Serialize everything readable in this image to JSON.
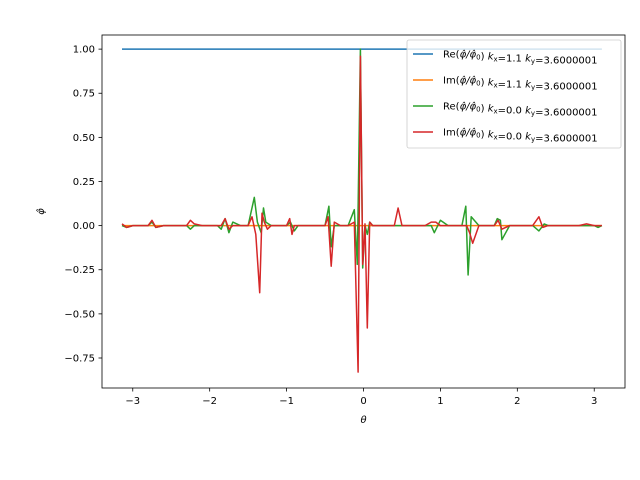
{
  "chart_data": {
    "type": "line",
    "xlabel": "θ",
    "ylabel": "φ̂",
    "xlim": [
      -3.4,
      3.4
    ],
    "ylim": [
      -0.92,
      1.08
    ],
    "xticks": [
      -3,
      -2,
      -1,
      0,
      1,
      2,
      3
    ],
    "xtick_labels": [
      "−3",
      "−2",
      "−1",
      "0",
      "1",
      "2",
      "3"
    ],
    "yticks": [
      -0.75,
      -0.5,
      -0.25,
      0.0,
      0.25,
      0.5,
      0.75,
      1.0
    ],
    "ytick_labels": [
      "−0.75",
      "−0.50",
      "−0.25",
      "0.00",
      "0.25",
      "0.50",
      "0.75",
      "1.00"
    ],
    "grid": false,
    "legend_position": "top-right",
    "series": [
      {
        "name": "Re(φ̂/φ̂₀) kx=1.1 ky=3.6000001",
        "legend": {
          "part": "Re",
          "kx": "1.1",
          "ky": "3.6000001"
        },
        "color": "#1f77b4",
        "x": [
          -3.14,
          3.1
        ],
        "y": [
          1.0,
          1.0
        ]
      },
      {
        "name": "Im(φ̂/φ̂₀) kx=1.1 ky=3.6000001",
        "legend": {
          "part": "Im",
          "kx": "1.1",
          "ky": "3.6000001"
        },
        "color": "#ff7f0e",
        "x": [
          -3.14,
          3.1
        ],
        "y": [
          0.0,
          0.0
        ]
      },
      {
        "name": "Re(φ̂/φ̂₀) kx=0.0 ky=3.6000001",
        "legend": {
          "part": "Re",
          "kx": "0.0",
          "ky": "3.6000001"
        },
        "color": "#2ca02c",
        "x": [
          -3.14,
          -3.08,
          -3.0,
          -2.9,
          -2.8,
          -2.75,
          -2.7,
          -2.6,
          -2.5,
          -2.4,
          -2.3,
          -2.25,
          -2.2,
          -2.1,
          -2.0,
          -1.9,
          -1.85,
          -1.8,
          -1.75,
          -1.7,
          -1.6,
          -1.5,
          -1.42,
          -1.38,
          -1.33,
          -1.3,
          -1.27,
          -1.2,
          -1.1,
          -1.0,
          -0.95,
          -0.9,
          -0.85,
          -0.8,
          -0.7,
          -0.6,
          -0.5,
          -0.45,
          -0.42,
          -0.38,
          -0.3,
          -0.2,
          -0.12,
          -0.08,
          -0.04,
          -0.01,
          0.02,
          0.05,
          0.08,
          0.12,
          0.2,
          0.3,
          0.4,
          0.5,
          0.6,
          0.7,
          0.8,
          0.88,
          0.92,
          1.0,
          1.1,
          1.2,
          1.28,
          1.33,
          1.36,
          1.4,
          1.5,
          1.6,
          1.7,
          1.74,
          1.78,
          1.8,
          1.9,
          2.0,
          2.1,
          2.2,
          2.28,
          2.35,
          2.4,
          2.5,
          2.6,
          2.7,
          2.8,
          2.9,
          3.0,
          3.05,
          3.1
        ],
        "y": [
          0.0,
          -0.01,
          0.0,
          0.0,
          0.0,
          0.02,
          -0.01,
          0.0,
          0.0,
          0.0,
          0.0,
          -0.02,
          0.0,
          0.0,
          0.0,
          0.0,
          -0.02,
          0.04,
          -0.04,
          0.02,
          0.0,
          0.0,
          0.16,
          0.02,
          -0.04,
          0.1,
          0.02,
          0.0,
          0.0,
          0.0,
          0.02,
          -0.03,
          0.0,
          0.0,
          0.0,
          0.0,
          0.0,
          0.11,
          -0.12,
          0.0,
          0.0,
          0.0,
          0.09,
          -0.22,
          1.0,
          -0.24,
          0.0,
          -0.05,
          0.02,
          0.0,
          0.0,
          0.0,
          0.0,
          0.0,
          0.0,
          0.0,
          0.0,
          0.0,
          -0.04,
          0.03,
          0.0,
          0.0,
          0.0,
          0.11,
          -0.28,
          0.05,
          0.0,
          0.0,
          0.0,
          0.04,
          0.03,
          -0.08,
          0.0,
          0.0,
          0.0,
          0.0,
          -0.03,
          0.01,
          0.0,
          0.0,
          0.0,
          0.0,
          0.0,
          0.0,
          0.0,
          -0.01,
          0.0
        ]
      },
      {
        "name": "Im(φ̂/φ̂₀) kx=0.0 ky=3.6000001",
        "legend": {
          "part": "Im",
          "kx": "0.0",
          "ky": "3.6000001"
        },
        "color": "#d62728",
        "x": [
          -3.14,
          -3.08,
          -3.0,
          -2.9,
          -2.8,
          -2.75,
          -2.7,
          -2.6,
          -2.5,
          -2.4,
          -2.3,
          -2.25,
          -2.2,
          -2.1,
          -2.0,
          -1.9,
          -1.85,
          -1.8,
          -1.75,
          -1.7,
          -1.6,
          -1.5,
          -1.45,
          -1.4,
          -1.35,
          -1.32,
          -1.29,
          -1.25,
          -1.2,
          -1.1,
          -1.0,
          -0.96,
          -0.93,
          -0.9,
          -0.85,
          -0.8,
          -0.7,
          -0.6,
          -0.5,
          -0.46,
          -0.42,
          -0.38,
          -0.3,
          -0.2,
          -0.12,
          -0.07,
          -0.04,
          -0.01,
          0.02,
          0.05,
          0.08,
          0.12,
          0.2,
          0.3,
          0.4,
          0.45,
          0.5,
          0.6,
          0.7,
          0.8,
          0.88,
          0.94,
          1.0,
          1.1,
          1.2,
          1.3,
          1.34,
          1.38,
          1.42,
          1.5,
          1.6,
          1.7,
          1.75,
          1.8,
          1.9,
          2.0,
          2.1,
          2.2,
          2.28,
          2.33,
          2.4,
          2.5,
          2.6,
          2.7,
          2.8,
          2.9,
          3.0,
          3.05,
          3.1
        ],
        "y": [
          0.01,
          -0.01,
          0.0,
          0.0,
          0.0,
          0.03,
          -0.01,
          0.0,
          0.0,
          0.0,
          0.0,
          0.03,
          0.01,
          0.0,
          0.0,
          0.0,
          0.0,
          0.04,
          -0.02,
          0.0,
          0.0,
          0.0,
          0.05,
          -0.05,
          -0.38,
          0.07,
          0.02,
          -0.02,
          0.0,
          0.0,
          0.0,
          0.04,
          -0.05,
          0.0,
          0.0,
          0.0,
          0.0,
          0.0,
          0.0,
          0.05,
          -0.23,
          0.02,
          0.0,
          0.0,
          0.02,
          -0.83,
          0.96,
          -0.22,
          0.01,
          -0.58,
          0.02,
          0.0,
          0.0,
          0.0,
          0.0,
          0.1,
          0.0,
          0.0,
          0.0,
          0.0,
          0.02,
          0.02,
          0.0,
          0.0,
          0.0,
          0.0,
          0.0,
          -0.04,
          -0.1,
          0.0,
          0.0,
          0.0,
          0.03,
          -0.02,
          0.0,
          0.0,
          0.0,
          0.0,
          0.05,
          -0.01,
          0.0,
          0.0,
          0.0,
          0.0,
          0.0,
          0.01,
          0.0,
          0.0,
          0.0
        ]
      }
    ]
  }
}
